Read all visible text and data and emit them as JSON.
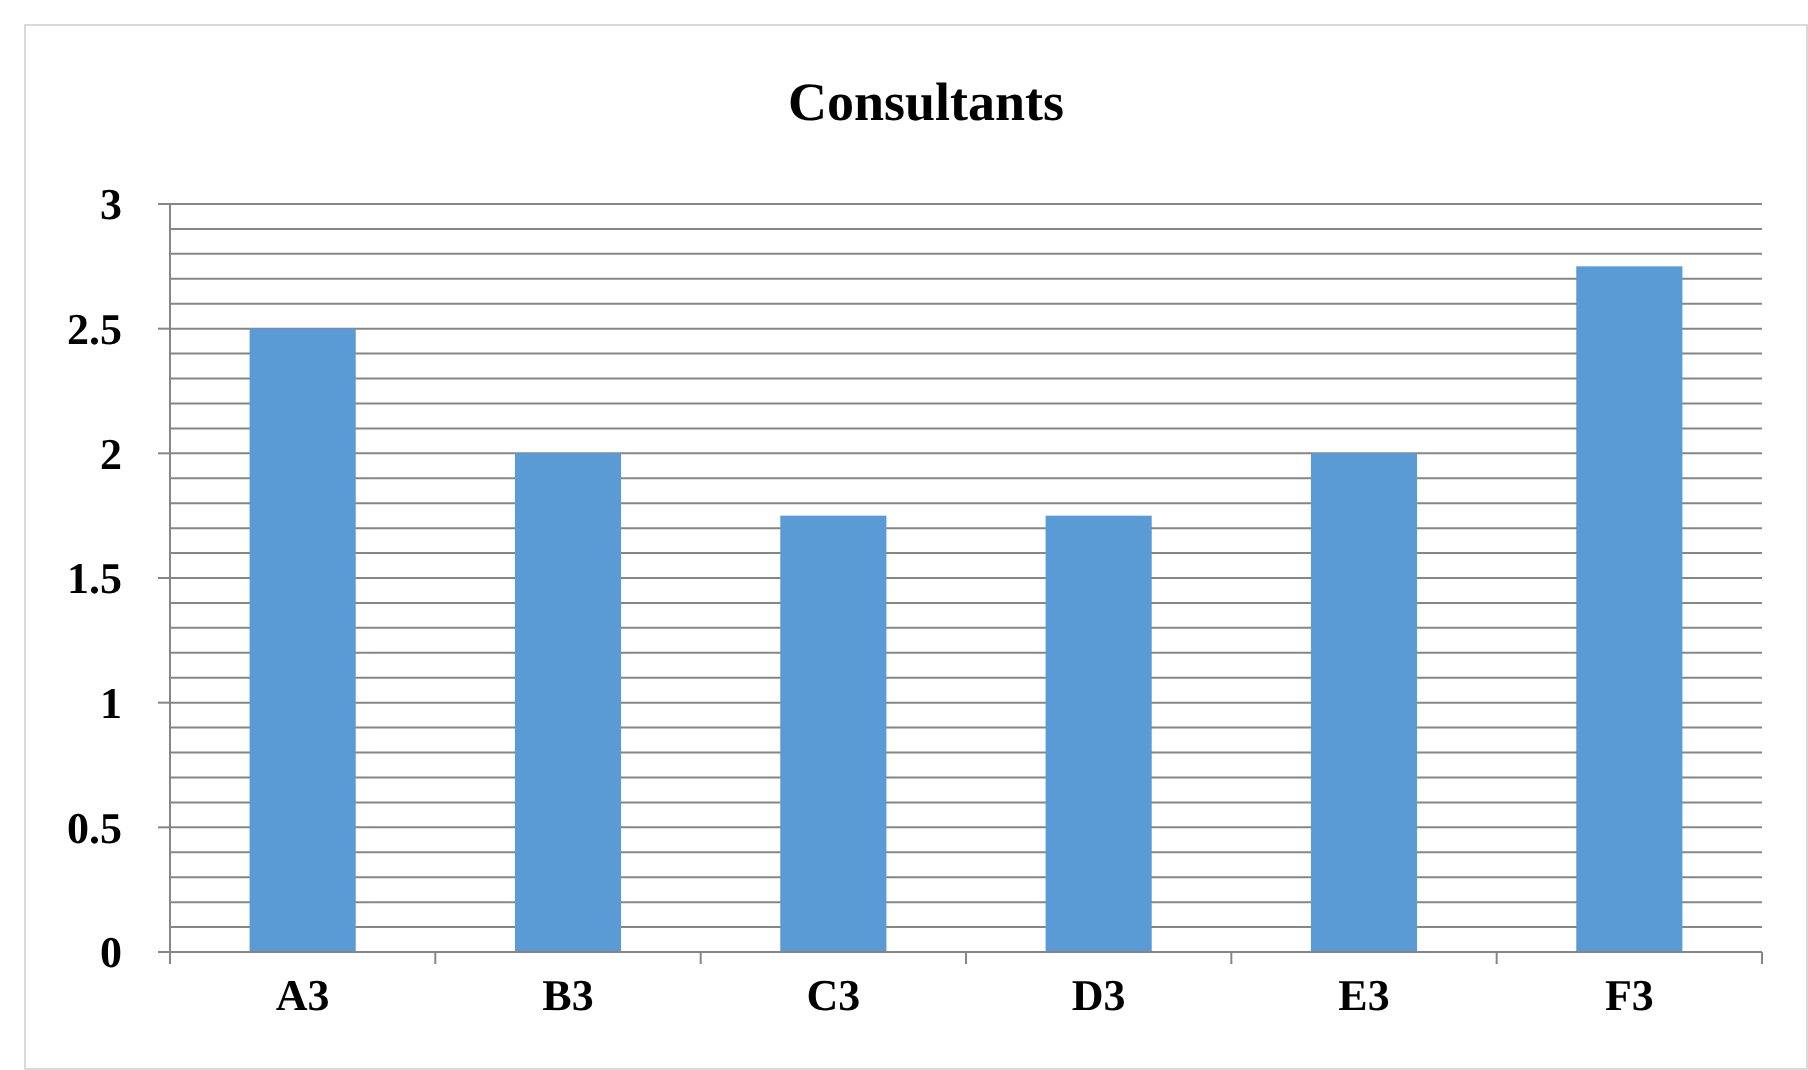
{
  "chart_data": {
    "type": "bar",
    "title": "Consultants",
    "categories": [
      "A3",
      "B3",
      "C3",
      "D3",
      "E3",
      "F3"
    ],
    "values": [
      2.5,
      2,
      1.75,
      1.75,
      2,
      2.75
    ],
    "color": "#5b9bd5",
    "ylim": [
      0,
      3
    ],
    "yticks": [
      0,
      {
        "value": 0.1,
        "label": null
      },
      {
        "value": 0.2,
        "label": null
      },
      {
        "value": 0.3,
        "label": null
      },
      {
        "value": 0.4,
        "label": null
      },
      0.5,
      {
        "value": 0.6,
        "label": null
      },
      {
        "value": 0.7,
        "label": null
      },
      {
        "value": 0.8,
        "label": null
      },
      {
        "value": 0.9,
        "label": null
      },
      1,
      {
        "value": 1.1,
        "label": null
      },
      {
        "value": 1.2,
        "label": null
      },
      {
        "value": 1.3,
        "label": null
      },
      {
        "value": 1.4,
        "label": null
      },
      1.5,
      {
        "value": 1.6,
        "label": null
      },
      {
        "value": 1.7,
        "label": null
      },
      {
        "value": 1.8,
        "label": null
      },
      {
        "value": 1.9,
        "label": null
      },
      2,
      {
        "value": 2.1,
        "label": null
      },
      {
        "value": 2.2,
        "label": null
      },
      {
        "value": 2.3,
        "label": null
      },
      {
        "value": 2.4,
        "label": null
      },
      2.5,
      {
        "value": 2.6,
        "label": null
      },
      {
        "value": 2.7,
        "label": null
      },
      {
        "value": 2.8,
        "label": null
      },
      {
        "value": 2.9,
        "label": null
      },
      3
    ],
    "grid": true
  }
}
